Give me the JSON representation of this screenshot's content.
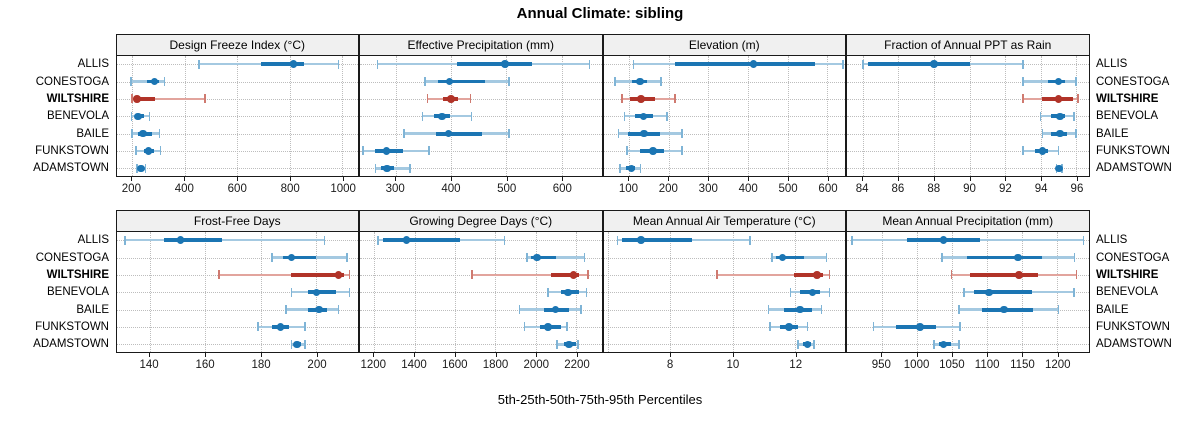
{
  "title": "Annual Climate: sibling",
  "caption": "5th-25th-50th-75th-95th Percentiles",
  "row_labels": [
    "ALLIS",
    "CONESTOGA",
    "WILTSHIRE",
    "BENEVOLA",
    "BAILE",
    "FUNKSTOWN",
    "ADAMSTOWN"
  ],
  "highlighted_series": "WILTSHIRE",
  "colors": {
    "blue_dark": "#1b75b3",
    "blue_light": "#a4c9e1",
    "blue_cap": "#7fb4d6",
    "red_dark": "#b13328",
    "red_light": "#e2a49d",
    "red_cap": "#cf7a70",
    "gridline": "#bdbdbd",
    "strip_bg": "#f0f0f0",
    "panel_border": "#1a1a1a",
    "text": "#000000"
  },
  "chart_data": {
    "type": "percentile-interval-dotplot",
    "percentile_labels": [
      "p5",
      "p25",
      "p50",
      "p75",
      "p95"
    ],
    "grid": "dotted",
    "legend_position": "none",
    "panels": [
      {
        "title": "Design Freeze Index (°C)",
        "grid_row": 0,
        "grid_col": 0,
        "xlim": [
          140,
          1060
        ],
        "ticks": [
          200,
          400,
          600,
          800,
          1000
        ],
        "minor_gridlines": [],
        "series": [
          {
            "name": "ALLIS",
            "percentiles": [
              455,
              690,
              815,
              855,
              985
            ]
          },
          {
            "name": "CONESTOGA",
            "percentiles": [
              195,
              258,
              285,
              303,
              323
            ]
          },
          {
            "name": "WILTSHIRE",
            "percentiles": [
              198,
              207,
              218,
              288,
              478
            ]
          },
          {
            "name": "BENEVOLA",
            "percentiles": [
              197,
              210,
              222,
              244,
              266
            ]
          },
          {
            "name": "BAILE",
            "percentiles": [
              198,
              221,
              241,
              274,
              304
            ]
          },
          {
            "name": "FUNKSTOWN",
            "percentiles": [
              214,
              244,
              261,
              282,
              307
            ]
          },
          {
            "name": "ADAMSTOWN",
            "percentiles": [
              219,
              227,
              234,
              242,
              250
            ]
          }
        ]
      },
      {
        "title": "Effective Precipitation (mm)",
        "grid_row": 0,
        "grid_col": 1,
        "xlim": [
          235,
          672
        ],
        "ticks": [
          300,
          400,
          500,
          600
        ],
        "minor_gridlines": [],
        "series": [
          {
            "name": "ALLIS",
            "percentiles": [
              267,
              410,
              497,
              547,
              650
            ]
          },
          {
            "name": "CONESTOGA",
            "percentiles": [
              353,
              376,
              397,
              462,
              505
            ]
          },
          {
            "name": "WILTSHIRE",
            "percentiles": [
              357,
              385,
              400,
              413,
              435
            ]
          },
          {
            "name": "BENEVOLA",
            "percentiles": [
              348,
              368,
              383,
              398,
              437
            ]
          },
          {
            "name": "BAILE",
            "percentiles": [
              315,
              373,
              395,
              455,
              505
            ]
          },
          {
            "name": "FUNKSTOWN",
            "percentiles": [
              240,
              262,
              283,
              313,
              360
            ]
          },
          {
            "name": "ADAMSTOWN",
            "percentiles": [
              263,
              273,
              284,
              296,
              325
            ]
          }
        ]
      },
      {
        "title": "Elevation (m)",
        "grid_row": 0,
        "grid_col": 2,
        "xlim": [
          35,
          645
        ],
        "ticks": [
          100,
          200,
          300,
          400,
          500,
          600
        ],
        "minor_gridlines": [],
        "series": [
          {
            "name": "ALLIS",
            "percentiles": [
              111,
              215,
              414,
              570,
              640
            ]
          },
          {
            "name": "CONESTOGA",
            "percentiles": [
              64,
              106,
              127,
              146,
              180
            ]
          },
          {
            "name": "WILTSHIRE",
            "percentiles": [
              82,
              102,
              130,
              164,
              216
            ]
          },
          {
            "name": "BENEVOLA",
            "percentiles": [
              88,
              115,
              136,
              160,
              195
            ]
          },
          {
            "name": "BAILE",
            "percentiles": [
              73,
              97,
              137,
              178,
              234
            ]
          },
          {
            "name": "FUNKSTOWN",
            "percentiles": [
              95,
              128,
              160,
              187,
              234
            ]
          },
          {
            "name": "ADAMSTOWN",
            "percentiles": [
              77,
              93,
              106,
              115,
              128
            ]
          }
        ]
      },
      {
        "title": "Fraction of Annual PPT as Rain",
        "grid_row": 0,
        "grid_col": 3,
        "xlim": [
          83.1,
          96.7
        ],
        "ticks": [
          84,
          86,
          88,
          90,
          92,
          94,
          96
        ],
        "minor_gridlines": [],
        "series": [
          {
            "name": "ALLIS",
            "percentiles": [
              84.0,
              84.3,
              88.0,
              90.0,
              93.0
            ]
          },
          {
            "name": "CONESTOGA",
            "percentiles": [
              93.0,
              94.4,
              95.0,
              95.4,
              96.0
            ]
          },
          {
            "name": "WILTSHIRE",
            "percentiles": [
              93.0,
              94.1,
              95.0,
              95.8,
              96.1
            ]
          },
          {
            "name": "BENEVOLA",
            "percentiles": [
              94.0,
              94.6,
              95.1,
              95.4,
              95.9
            ]
          },
          {
            "name": "BAILE",
            "percentiles": [
              94.1,
              94.6,
              95.1,
              95.5,
              96.0
            ]
          },
          {
            "name": "FUNKSTOWN",
            "percentiles": [
              93.0,
              93.7,
              94.1,
              94.4,
              95.0
            ]
          },
          {
            "name": "ADAMSTOWN",
            "percentiles": [
              94.9,
              95.0,
              95.05,
              95.1,
              95.2
            ]
          }
        ]
      },
      {
        "title": "Frost-Free Days",
        "grid_row": 1,
        "grid_col": 0,
        "xlim": [
          128,
          215
        ],
        "ticks": [
          140,
          160,
          180,
          200
        ],
        "minor_gridlines": [],
        "series": [
          {
            "name": "ALLIS",
            "percentiles": [
              131,
              145,
              151,
              166,
              203
            ]
          },
          {
            "name": "CONESTOGA",
            "percentiles": [
              184,
              188,
              191,
              200,
              211
            ]
          },
          {
            "name": "WILTSHIRE",
            "percentiles": [
              165,
              191,
              208,
              210,
              212
            ]
          },
          {
            "name": "BENEVOLA",
            "percentiles": [
              191,
              197,
              200,
              207,
              212
            ]
          },
          {
            "name": "BAILE",
            "percentiles": [
              189,
              197,
              201,
              204,
              208
            ]
          },
          {
            "name": "FUNKSTOWN",
            "percentiles": [
              179,
              184,
              187,
              190,
              196
            ]
          },
          {
            "name": "ADAMSTOWN",
            "percentiles": [
              191,
              192,
              193,
              194.5,
              196
            ]
          }
        ]
      },
      {
        "title": "Growing Degree Days (°C)",
        "grid_row": 1,
        "grid_col": 1,
        "xlim": [
          1130,
          2325
        ],
        "ticks": [
          1200,
          1400,
          1600,
          1800,
          2000,
          2200
        ],
        "minor_gridlines": [],
        "series": [
          {
            "name": "ALLIS",
            "percentiles": [
              1220,
              1245,
              1360,
              1625,
              1845
            ]
          },
          {
            "name": "CONESTOGA",
            "percentiles": [
              1955,
              1975,
              2005,
              2100,
              2240
            ]
          },
          {
            "name": "WILTSHIRE",
            "percentiles": [
              1683,
              2077,
              2187,
              2215,
              2258
            ]
          },
          {
            "name": "BENEVOLA",
            "percentiles": [
              2060,
              2125,
              2160,
              2215,
              2250
            ]
          },
          {
            "name": "BAILE",
            "percentiles": [
              1920,
              2040,
              2097,
              2165,
              2225
            ]
          },
          {
            "name": "FUNKSTOWN",
            "percentiles": [
              1945,
              2020,
              2060,
              2125,
              2155
            ]
          },
          {
            "name": "ADAMSTOWN",
            "percentiles": [
              2105,
              2140,
              2165,
              2198,
              2210
            ]
          }
        ]
      },
      {
        "title": "Mean Annual Air Temperature (°C)",
        "grid_row": 1,
        "grid_col": 2,
        "xlim": [
          5.85,
          13.6
        ],
        "ticks": [
          8,
          10,
          12
        ],
        "minor_gridlines": [
          6
        ],
        "series": [
          {
            "name": "ALLIS",
            "percentiles": [
              6.3,
              6.45,
              7.05,
              8.7,
              10.55
            ]
          },
          {
            "name": "CONESTOGA",
            "percentiles": [
              11.25,
              11.4,
              11.6,
              12.3,
              13.0
            ]
          },
          {
            "name": "WILTSHIRE",
            "percentiles": [
              9.5,
              11.95,
              12.7,
              12.9,
              13.1
            ]
          },
          {
            "name": "BENEVOLA",
            "percentiles": [
              11.85,
              12.15,
              12.55,
              12.8,
              13.1
            ]
          },
          {
            "name": "BAILE",
            "percentiles": [
              11.15,
              11.65,
              12.15,
              12.55,
              12.85
            ]
          },
          {
            "name": "FUNKSTOWN",
            "percentiles": [
              11.2,
              11.5,
              11.8,
              12.1,
              12.4
            ]
          },
          {
            "name": "ADAMSTOWN",
            "percentiles": [
              12.1,
              12.25,
              12.4,
              12.5,
              12.6
            ]
          }
        ]
      },
      {
        "title": "Mean Annual Precipitation (mm)",
        "grid_row": 1,
        "grid_col": 3,
        "xlim": [
          900,
          1245
        ],
        "ticks": [
          950,
          1000,
          1050,
          1100,
          1150,
          1200
        ],
        "minor_gridlines": [],
        "series": [
          {
            "name": "ALLIS",
            "percentiles": [
              907,
              985,
              1038,
              1090,
              1238
            ]
          },
          {
            "name": "CONESTOGA",
            "percentiles": [
              1036,
              1072,
              1144,
              1178,
              1225
            ]
          },
          {
            "name": "WILTSHIRE",
            "percentiles": [
              1049,
              1076,
              1146,
              1173,
              1228
            ]
          },
          {
            "name": "BENEVOLA",
            "percentiles": [
              1067,
              1081,
              1103,
              1164,
              1224
            ]
          },
          {
            "name": "BAILE",
            "percentiles": [
              1060,
              1093,
              1124,
              1166,
              1202
            ]
          },
          {
            "name": "FUNKSTOWN",
            "percentiles": [
              938,
              970,
              1004,
              1027,
              1061
            ]
          },
          {
            "name": "ADAMSTOWN",
            "percentiles": [
              1024,
              1031,
              1038,
              1048,
              1060
            ]
          }
        ]
      }
    ]
  }
}
